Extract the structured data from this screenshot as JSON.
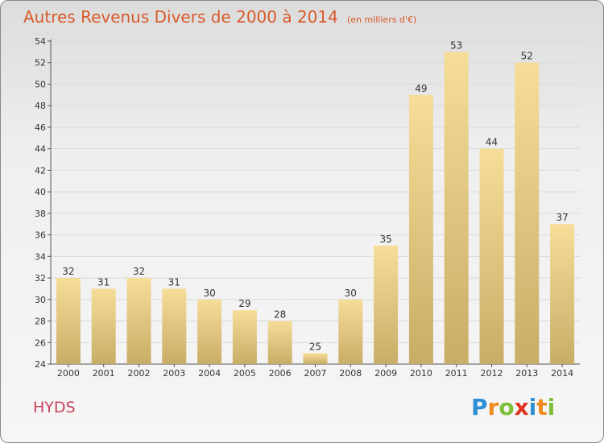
{
  "header": {
    "title": "Autres Revenus Divers de 2000 à 2014",
    "subtitle": "(en milliers d'€)"
  },
  "footer": {
    "commune": "HYDS",
    "logo_letters": [
      "P",
      "r",
      "o",
      "x",
      "i",
      "t",
      "i"
    ],
    "logo_colors": [
      "#2e8fd6",
      "#f08a1c",
      "#7cbf3a",
      "#e0341f",
      "#2e8fd6",
      "#f08a1c",
      "#7cbf3a"
    ]
  },
  "colors": {
    "bar_light": "#f6dd98",
    "bar_dark": "#c8ad67",
    "title": "#d85a2a",
    "commune": "#c8445a",
    "grid": "#d9d9d9"
  },
  "chart_data": {
    "type": "bar",
    "title": "Autres Revenus Divers de 2000 à 2014",
    "subtitle": "(en milliers d'€)",
    "categories": [
      "2000",
      "2001",
      "2002",
      "2003",
      "2004",
      "2005",
      "2006",
      "2007",
      "2008",
      "2009",
      "2010",
      "2011",
      "2012",
      "2013",
      "2014"
    ],
    "values": [
      32,
      31,
      32,
      31,
      30,
      29,
      28,
      25,
      30,
      35,
      49,
      53,
      44,
      52,
      37
    ],
    "ylim": [
      24,
      54
    ],
    "yticks": [
      24,
      26,
      28,
      30,
      32,
      34,
      36,
      38,
      40,
      42,
      44,
      46,
      48,
      50,
      52,
      54
    ],
    "grid": true,
    "xlabel": "",
    "ylabel": ""
  }
}
